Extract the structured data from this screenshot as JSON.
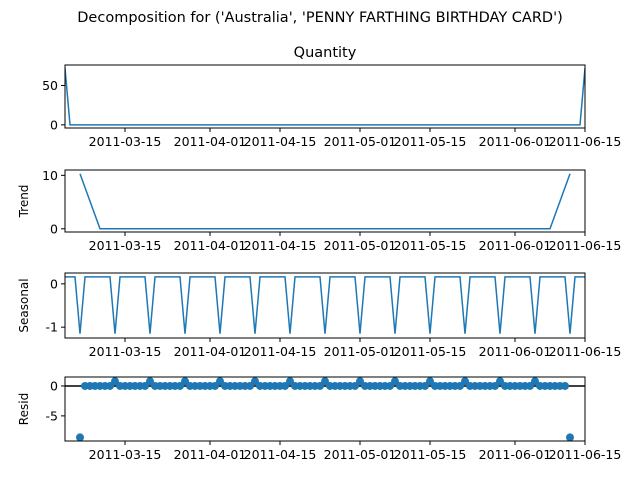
{
  "figure": {
    "suptitle": "Decomposition for ('Australia', 'PENNY FARTHING BIRTHDAY CARD')"
  },
  "colors": {
    "line": "#1f77b4",
    "zero_line": "#000000",
    "axes": "#000000"
  },
  "chart_data": [
    {
      "type": "line",
      "title": "Quantity",
      "ylabel": "",
      "xlim": [
        "2011-03-03",
        "2011-06-15"
      ],
      "ylim": [
        -4,
        76
      ],
      "yticks": [
        0,
        50
      ],
      "xticks": [
        "2011-03-15",
        "2011-04-01",
        "2011-04-15",
        "2011-05-01",
        "2011-05-15",
        "2011-06-01",
        "2011-06-15"
      ],
      "series": [
        {
          "x": [
            "2011-03-03",
            "2011-03-04",
            "2011-06-14",
            "2011-06-15"
          ],
          "values": [
            72,
            0,
            0,
            72
          ]
        }
      ]
    },
    {
      "type": "line",
      "title": "",
      "ylabel": "Trend",
      "xlim": [
        "2011-03-03",
        "2011-06-15"
      ],
      "ylim": [
        -0.6,
        11.0
      ],
      "yticks": [
        0,
        10
      ],
      "xticks": [
        "2011-03-15",
        "2011-04-01",
        "2011-04-15",
        "2011-05-01",
        "2011-05-15",
        "2011-06-01",
        "2011-06-15"
      ],
      "series": [
        {
          "x": [
            "2011-03-06",
            "2011-03-10",
            "2011-06-08",
            "2011-06-12"
          ],
          "values": [
            10.3,
            0,
            0,
            10.3
          ]
        }
      ]
    },
    {
      "type": "line",
      "title": "",
      "ylabel": "Seasonal",
      "xlim": [
        "2011-03-03",
        "2011-06-15"
      ],
      "ylim": [
        -1.25,
        0.25
      ],
      "yticks": [
        -1,
        0
      ],
      "xticks": [
        "2011-03-15",
        "2011-04-01",
        "2011-04-15",
        "2011-05-01",
        "2011-05-15",
        "2011-06-01",
        "2011-06-15"
      ],
      "pattern": {
        "start": "2011-03-03",
        "period_days": 7,
        "days": 105,
        "values": [
          0.16,
          0.16,
          0.16,
          -1.15,
          0.16,
          0.16,
          0.16
        ]
      }
    },
    {
      "type": "scatter",
      "title": "",
      "ylabel": "Resid",
      "xlim": [
        "2011-03-03",
        "2011-06-15"
      ],
      "ylim": [
        -9.2,
        1.5
      ],
      "yticks": [
        -5,
        0
      ],
      "xticks": [
        "2011-03-15",
        "2011-04-01",
        "2011-04-15",
        "2011-05-01",
        "2011-05-15",
        "2011-06-01",
        "2011-06-15"
      ],
      "zero_line": true,
      "series": [
        {
          "start": "2011-03-06",
          "days": 98,
          "values": [
            -8.6,
            0,
            0,
            0,
            0,
            0,
            0,
            0.8,
            0,
            0,
            0,
            0,
            0,
            0,
            0.8,
            0,
            0,
            0,
            0,
            0,
            0,
            0.8,
            0,
            0,
            0,
            0,
            0,
            0,
            0.8,
            0,
            0,
            0,
            0,
            0,
            0,
            0.8,
            0,
            0,
            0,
            0,
            0,
            0,
            0.8,
            0,
            0,
            0,
            0,
            0,
            0,
            0.8,
            0,
            0,
            0,
            0,
            0,
            0,
            0.8,
            0,
            0,
            0,
            0,
            0,
            0,
            0.8,
            0,
            0,
            0,
            0,
            0,
            0,
            0.8,
            0,
            0,
            0,
            0,
            0,
            0,
            0.8,
            0,
            0,
            0,
            0,
            0,
            0,
            0.8,
            0,
            0,
            0,
            0,
            0,
            0,
            0.8,
            0,
            0,
            0,
            0,
            0,
            0,
            -8.6
          ]
        }
      ]
    }
  ]
}
